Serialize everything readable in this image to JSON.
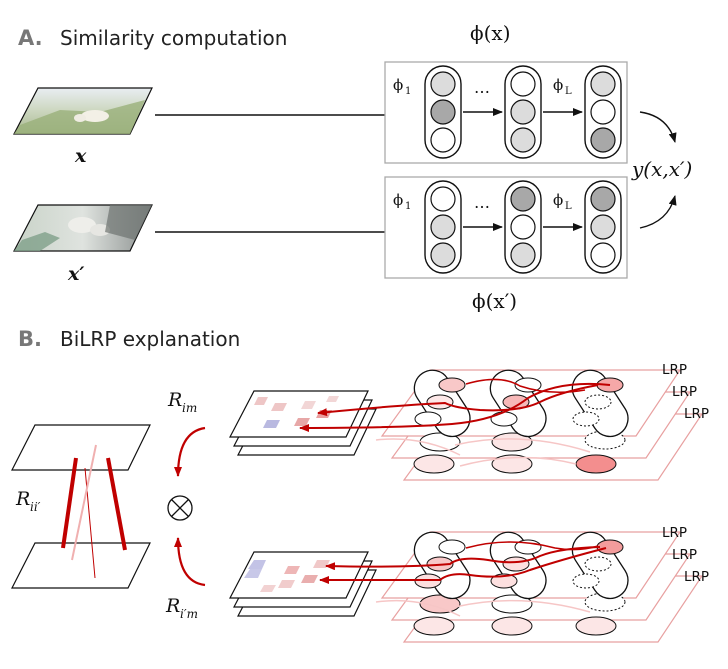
{
  "section_a": {
    "letter": "A.",
    "title": "Similarity computation",
    "phi_x": "ϕ(x)",
    "phi_xprime": "ϕ(x′)",
    "x_label": "x",
    "xprime_label": "x′",
    "output_label": "y(x,x′)",
    "phi_1": "ϕ",
    "phi_1_sub": "1",
    "phi_L": "ϕ",
    "phi_L_sub": "L",
    "ellipsis": "…"
  },
  "section_b": {
    "letter": "B.",
    "title": "BiLRP explanation",
    "r_im": "R",
    "r_im_sub": "im",
    "r_iprime_m": "R",
    "r_iprime_m_sub": "i′m",
    "r_iiprime": "R",
    "r_iiprime_sub": "ii′",
    "lrp": "LRP",
    "otimes": "⊗"
  },
  "colors": {
    "relevance_red": "#c00000",
    "panel_border": "#aaaaaa",
    "layer_pink": "#e8a0a0",
    "neuron_gray_dark": "#aaaaaa",
    "neuron_gray_light": "#dddddd"
  }
}
